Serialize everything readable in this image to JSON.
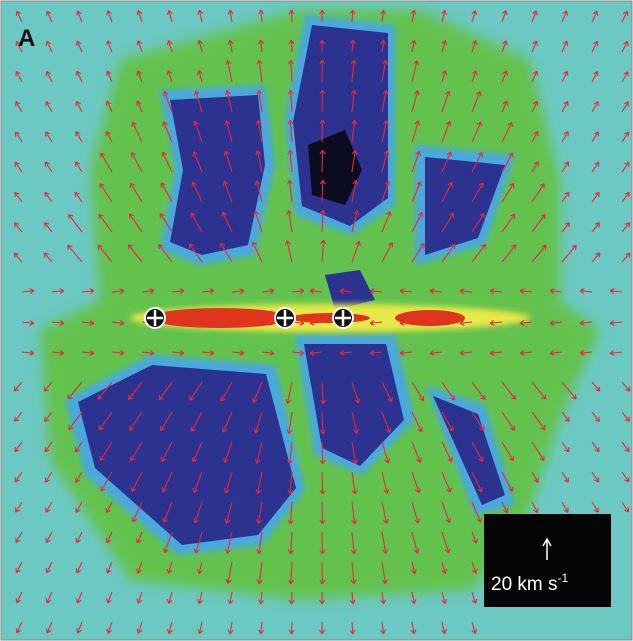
{
  "panel_label": "A",
  "scale_bar": {
    "label": "20 km s",
    "exponent": "-1"
  }
}
